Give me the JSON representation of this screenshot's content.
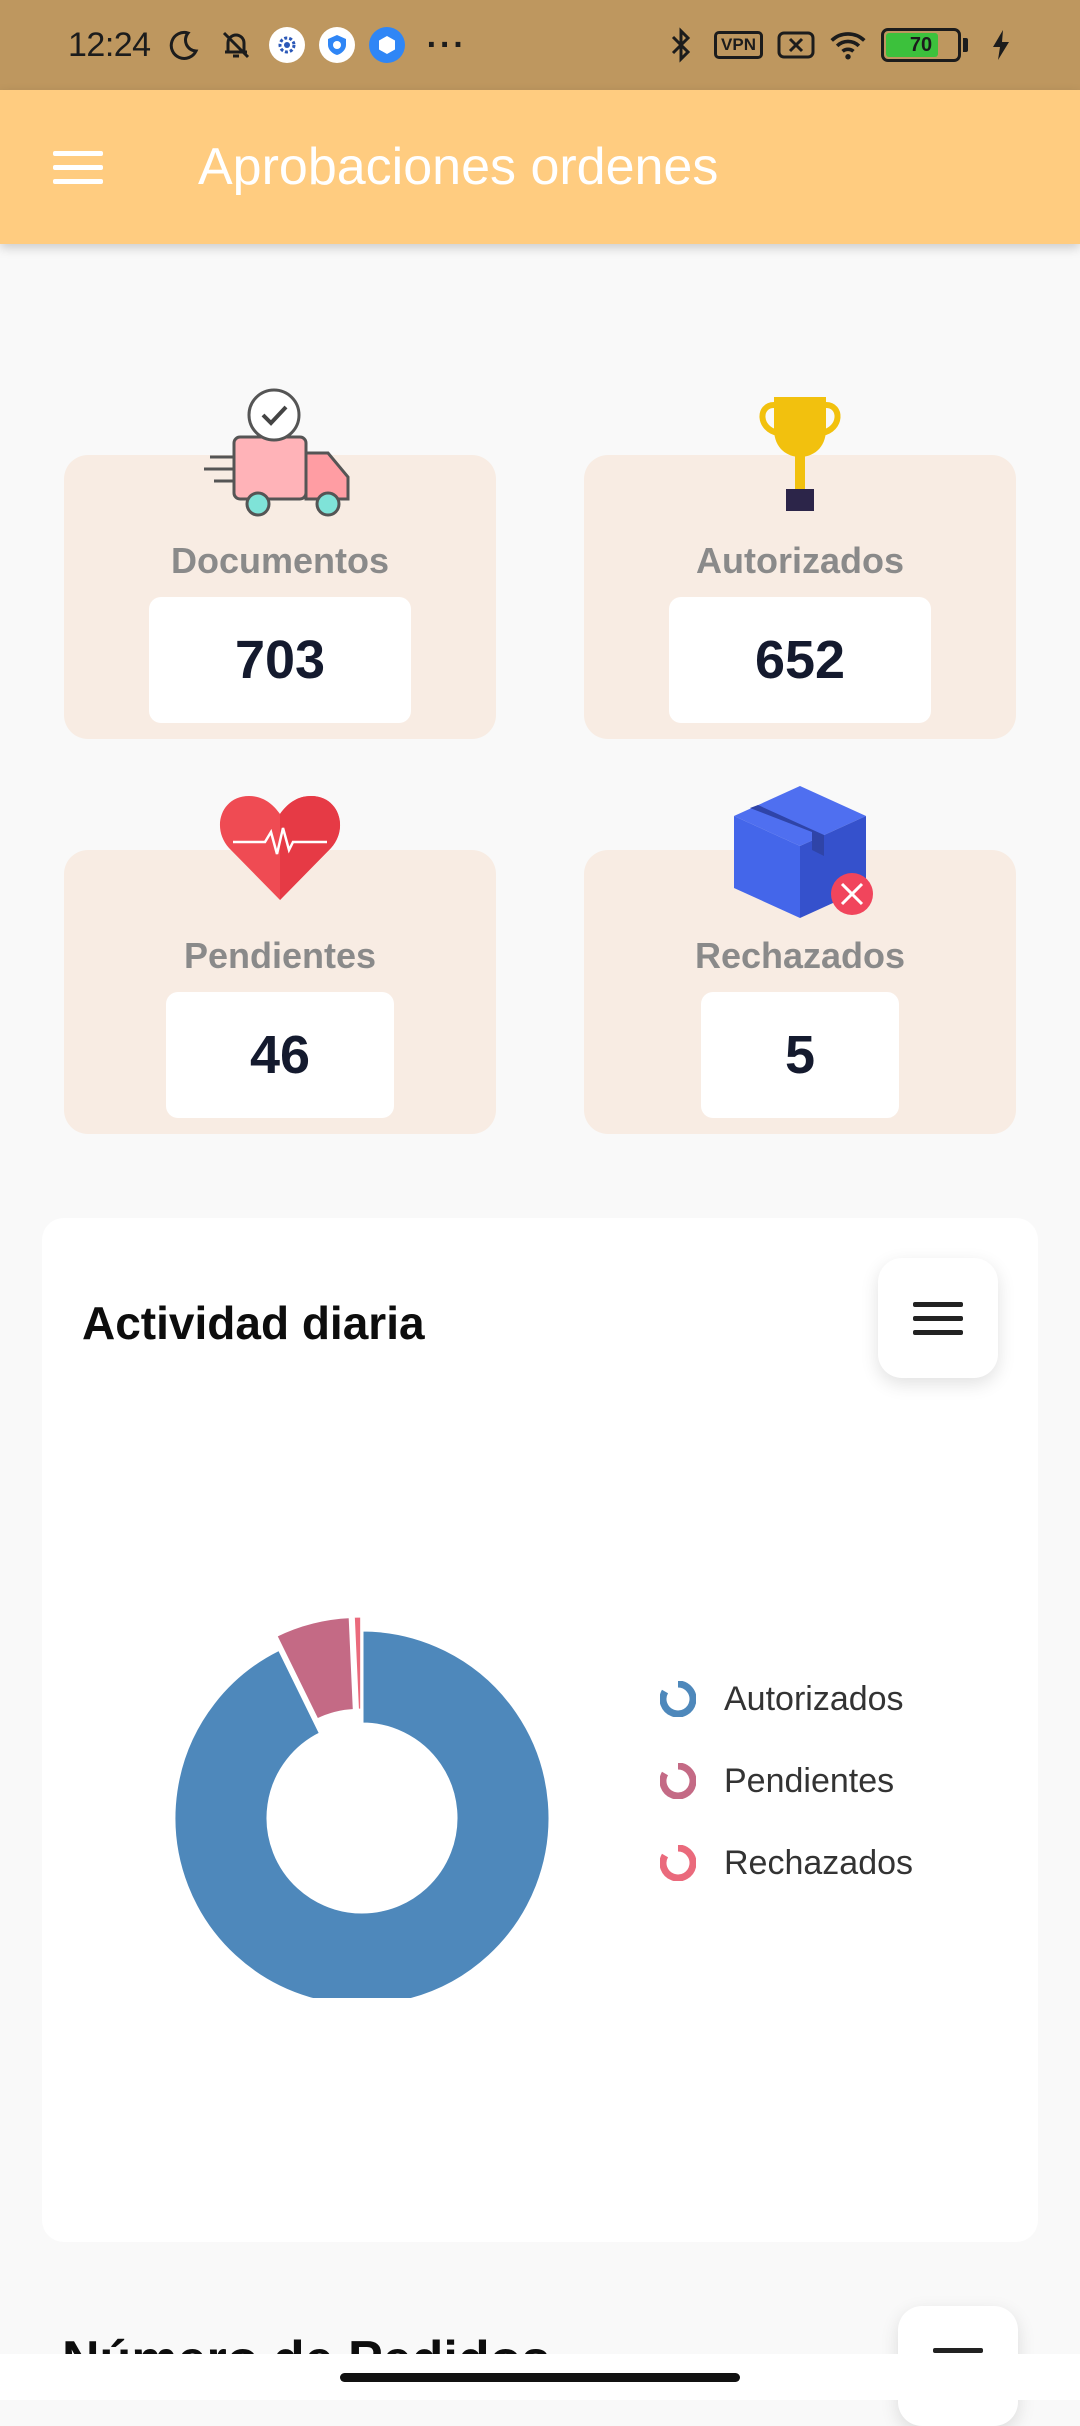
{
  "status_bar": {
    "time": "12:24",
    "vpn_label": "VPN",
    "battery": "70",
    "more": "···"
  },
  "app_bar": {
    "title": "Aprobaciones ordenes",
    "menu_icon": "hamburger-menu-icon"
  },
  "stats": [
    {
      "label": "Documentos",
      "value": "703",
      "icon": "delivery-truck-icon"
    },
    {
      "label": "Autorizados",
      "value": "652",
      "icon": "trophy-icon"
    },
    {
      "label": "Pendientes",
      "value": "46",
      "icon": "heart-pulse-icon"
    },
    {
      "label": "Rechazados",
      "value": "5",
      "icon": "rejected-box-icon"
    }
  ],
  "chart_card": {
    "title": "Actividad diaria",
    "menu_icon": "hamburger-menu-icon"
  },
  "chart_data": {
    "type": "pie",
    "variant": "donut",
    "categories": [
      "Autorizados",
      "Pendientes",
      "Rechazados"
    ],
    "values": [
      652,
      46,
      5
    ],
    "colors": [
      "#4e88bb",
      "#c46a85",
      "#ea6a7c"
    ],
    "legend_position": "right",
    "title": "Actividad diaria"
  },
  "next_card": {
    "title": "Número de Pedidos"
  }
}
